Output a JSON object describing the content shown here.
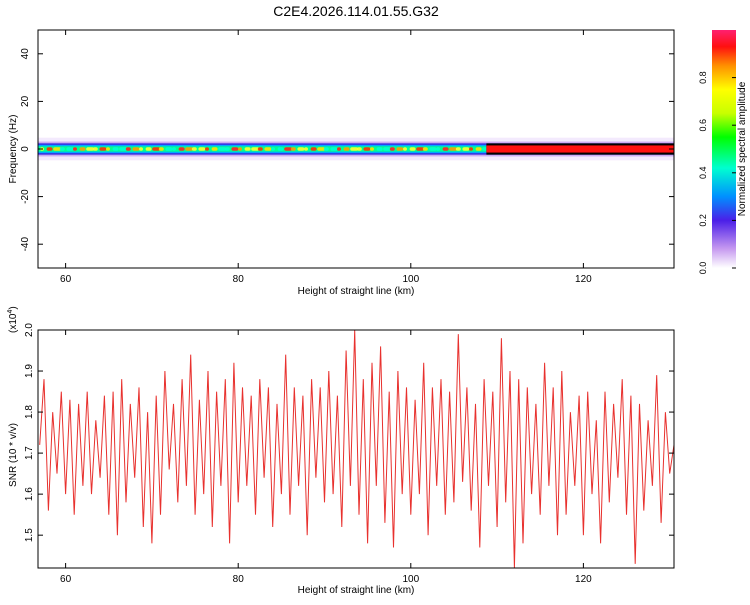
{
  "title": "C2E4.2026.114.01.55.G32",
  "chart_data": [
    {
      "type": "heatmap",
      "xlabel": "Height of straight line (km)",
      "ylabel": "Frequency (Hz)",
      "xlim": [
        56.8,
        130.5
      ],
      "ylim": [
        -50,
        50
      ],
      "xticks": [
        60,
        80,
        100,
        120
      ],
      "xtick_labels": [
        "60",
        "80",
        "100",
        "120"
      ],
      "yticks": [
        -40,
        -20,
        0,
        20,
        40
      ],
      "ytick_labels": [
        "-40",
        "-20",
        "0",
        "20",
        "40"
      ],
      "band_center_hz": 0,
      "band_halfwidth_hz": 2.5,
      "colorbar": {
        "label": "Normalized spectral amplitude",
        "range": [
          0,
          1
        ],
        "ticks": [
          0.0,
          0.2,
          0.4,
          0.6,
          0.8
        ],
        "tick_labels": [
          "0.0",
          "0.2",
          "0.4",
          "0.6",
          "0.8"
        ]
      }
    },
    {
      "type": "line",
      "xlabel": "Height of straight line (km)",
      "ylabel": "SNR (10 * v/v)",
      "y_multiplier_label": "(x10",
      "y_multiplier_exp": "4",
      "y_multiplier_close": ")",
      "xlim": [
        56.8,
        130.5
      ],
      "ylim": [
        1.42,
        2.0
      ],
      "xticks": [
        60,
        80,
        100,
        120
      ],
      "xtick_labels": [
        "60",
        "80",
        "100",
        "120"
      ],
      "yticks": [
        1.5,
        1.6,
        1.7,
        1.8,
        1.9,
        2.0
      ],
      "ytick_labels": [
        "1.5",
        "1.6",
        "1.7",
        "1.8",
        "1.9",
        "2.0"
      ],
      "series": [
        {
          "name": "SNR",
          "color": "#e8312e",
          "x": [
            57.0,
            57.5,
            58.0,
            58.5,
            59.0,
            59.5,
            60.0,
            60.5,
            61.0,
            61.5,
            62.0,
            62.5,
            63.0,
            63.5,
            64.0,
            64.5,
            65.0,
            65.5,
            66.0,
            66.5,
            67.0,
            67.5,
            68.0,
            68.5,
            69.0,
            69.5,
            70.0,
            70.5,
            71.0,
            71.5,
            72.0,
            72.5,
            73.0,
            73.5,
            74.0,
            74.5,
            75.0,
            75.5,
            76.0,
            76.5,
            77.0,
            77.5,
            78.0,
            78.5,
            79.0,
            79.5,
            80.0,
            80.5,
            81.0,
            81.5,
            82.0,
            82.5,
            83.0,
            83.5,
            84.0,
            84.5,
            85.0,
            85.5,
            86.0,
            86.5,
            87.0,
            87.5,
            88.0,
            88.5,
            89.0,
            89.5,
            90.0,
            90.5,
            91.0,
            91.5,
            92.0,
            92.5,
            93.0,
            93.5,
            94.0,
            94.5,
            95.0,
            95.5,
            96.0,
            96.5,
            97.0,
            97.5,
            98.0,
            98.5,
            99.0,
            99.5,
            100.0,
            100.5,
            101.0,
            101.5,
            102.0,
            102.5,
            103.0,
            103.5,
            104.0,
            104.5,
            105.0,
            105.5,
            106.0,
            106.5,
            107.0,
            107.5,
            108.0,
            108.5,
            109.0,
            109.5,
            110.0,
            110.5,
            111.0,
            111.5,
            112.0,
            112.5,
            113.0,
            113.5,
            114.0,
            114.5,
            115.0,
            115.5,
            116.0,
            116.5,
            117.0,
            117.5,
            118.0,
            118.5,
            119.0,
            119.5,
            120.0,
            120.5,
            121.0,
            121.5,
            122.0,
            122.5,
            123.0,
            123.5,
            124.0,
            124.5,
            125.0,
            125.5,
            126.0,
            126.5,
            127.0,
            127.5,
            128.0,
            128.5,
            129.0,
            129.5,
            130.0,
            130.5
          ],
          "values": [
            1.72,
            1.88,
            1.56,
            1.8,
            1.65,
            1.85,
            1.6,
            1.83,
            1.55,
            1.82,
            1.62,
            1.85,
            1.6,
            1.78,
            1.64,
            1.84,
            1.55,
            1.85,
            1.5,
            1.88,
            1.58,
            1.82,
            1.64,
            1.86,
            1.52,
            1.8,
            1.48,
            1.84,
            1.55,
            1.9,
            1.66,
            1.82,
            1.58,
            1.88,
            1.62,
            1.94,
            1.55,
            1.83,
            1.6,
            1.9,
            1.52,
            1.85,
            1.62,
            1.88,
            1.48,
            1.92,
            1.58,
            1.86,
            1.62,
            1.84,
            1.55,
            1.88,
            1.64,
            1.86,
            1.52,
            1.82,
            1.6,
            1.94,
            1.55,
            1.86,
            1.62,
            1.84,
            1.5,
            1.88,
            1.64,
            1.86,
            1.58,
            1.9,
            1.6,
            1.84,
            1.52,
            1.95,
            1.62,
            2.0,
            1.55,
            1.88,
            1.48,
            1.92,
            1.62,
            1.96,
            1.53,
            1.85,
            1.47,
            1.9,
            1.6,
            1.86,
            1.55,
            1.83,
            1.6,
            1.92,
            1.5,
            1.86,
            1.62,
            1.88,
            1.55,
            1.85,
            1.58,
            1.99,
            1.63,
            1.86,
            1.56,
            1.82,
            1.47,
            1.88,
            1.62,
            1.85,
            1.52,
            1.98,
            1.58,
            1.9,
            1.42,
            1.88,
            1.48,
            1.86,
            1.6,
            1.82,
            1.55,
            1.92,
            1.62,
            1.86,
            1.5,
            1.9,
            1.55,
            1.8,
            1.62,
            1.84,
            1.5,
            1.85,
            1.6,
            1.78,
            1.48,
            1.85,
            1.58,
            1.82,
            1.64,
            1.88,
            1.55,
            1.84,
            1.43,
            1.82,
            1.56,
            1.78,
            1.62,
            1.89,
            1.53,
            1.8,
            1.65,
            1.72
          ]
        }
      ]
    }
  ]
}
